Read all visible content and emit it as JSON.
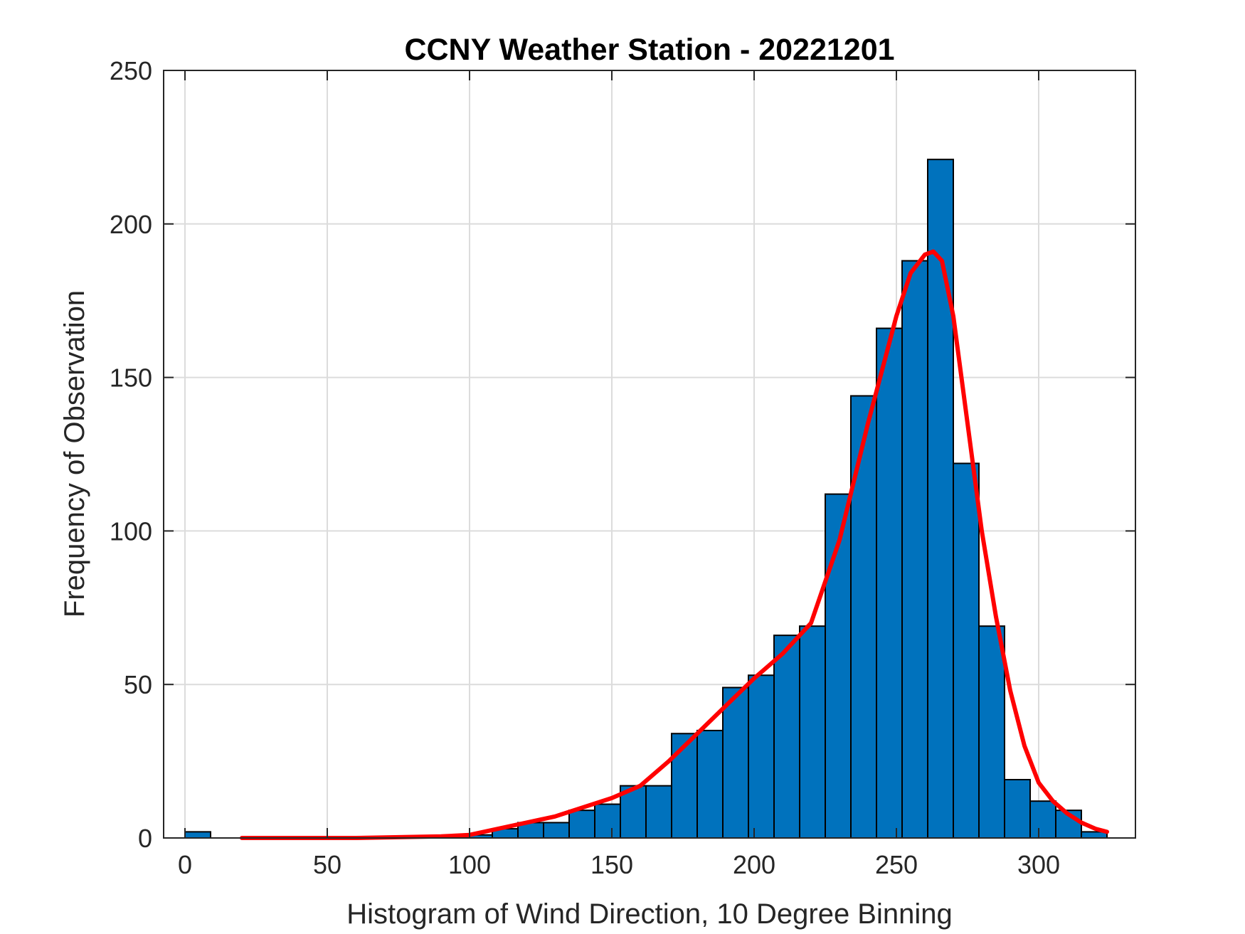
{
  "chart_data": {
    "type": "bar",
    "title": "CCNY Weather Station - 20221201",
    "xlabel": "Histogram of Wind Direction, 10 Degree Binning",
    "ylabel": "Frequency of Observation",
    "xlim": [
      -7.5,
      334
    ],
    "ylim": [
      0,
      250
    ],
    "x_ticks": [
      0,
      50,
      100,
      150,
      200,
      250,
      300
    ],
    "y_ticks": [
      0,
      50,
      100,
      150,
      200,
      250
    ],
    "grid": true,
    "bin_width": 9,
    "bar_color": "#0072BD",
    "bar_edge_color": "#000000",
    "curve_color": "#FF0000",
    "bins": [
      {
        "start": 0,
        "value": 2
      },
      {
        "start": 9,
        "value": 0
      },
      {
        "start": 18,
        "value": 0
      },
      {
        "start": 27,
        "value": 0
      },
      {
        "start": 36,
        "value": 0
      },
      {
        "start": 45,
        "value": 0
      },
      {
        "start": 54,
        "value": 0
      },
      {
        "start": 63,
        "value": 0
      },
      {
        "start": 72,
        "value": 0
      },
      {
        "start": 81,
        "value": 0
      },
      {
        "start": 90,
        "value": 0
      },
      {
        "start": 99,
        "value": 1
      },
      {
        "start": 108,
        "value": 3
      },
      {
        "start": 117,
        "value": 5
      },
      {
        "start": 126,
        "value": 5
      },
      {
        "start": 135,
        "value": 9
      },
      {
        "start": 144,
        "value": 11
      },
      {
        "start": 153,
        "value": 17
      },
      {
        "start": 162,
        "value": 17
      },
      {
        "start": 171,
        "value": 34
      },
      {
        "start": 180,
        "value": 35
      },
      {
        "start": 189,
        "value": 49
      },
      {
        "start": 198,
        "value": 53
      },
      {
        "start": 207,
        "value": 66
      },
      {
        "start": 216,
        "value": 69
      },
      {
        "start": 225,
        "value": 112
      },
      {
        "start": 234,
        "value": 144
      },
      {
        "start": 243,
        "value": 166
      },
      {
        "start": 252,
        "value": 188
      },
      {
        "start": 261,
        "value": 221
      },
      {
        "start": 270,
        "value": 122
      },
      {
        "start": 279,
        "value": 69
      },
      {
        "start": 288,
        "value": 19
      },
      {
        "start": 297,
        "value": 12
      },
      {
        "start": 306,
        "value": 9
      },
      {
        "start": 315,
        "value": 2
      }
    ],
    "fit_curve": {
      "x": [
        20,
        60,
        90,
        100,
        110,
        120,
        130,
        140,
        150,
        160,
        170,
        180,
        190,
        200,
        210,
        220,
        230,
        240,
        250,
        255,
        260,
        263,
        266,
        270,
        275,
        280,
        285,
        290,
        295,
        300,
        305,
        310,
        315,
        320,
        324
      ],
      "y": [
        0,
        0,
        0.5,
        1,
        3,
        5,
        7,
        10,
        13,
        17,
        25,
        34,
        43,
        52,
        60,
        70,
        97,
        135,
        170,
        184,
        190,
        191,
        188,
        170,
        135,
        100,
        72,
        48,
        30,
        18,
        12,
        8,
        5,
        3,
        2
      ]
    }
  }
}
